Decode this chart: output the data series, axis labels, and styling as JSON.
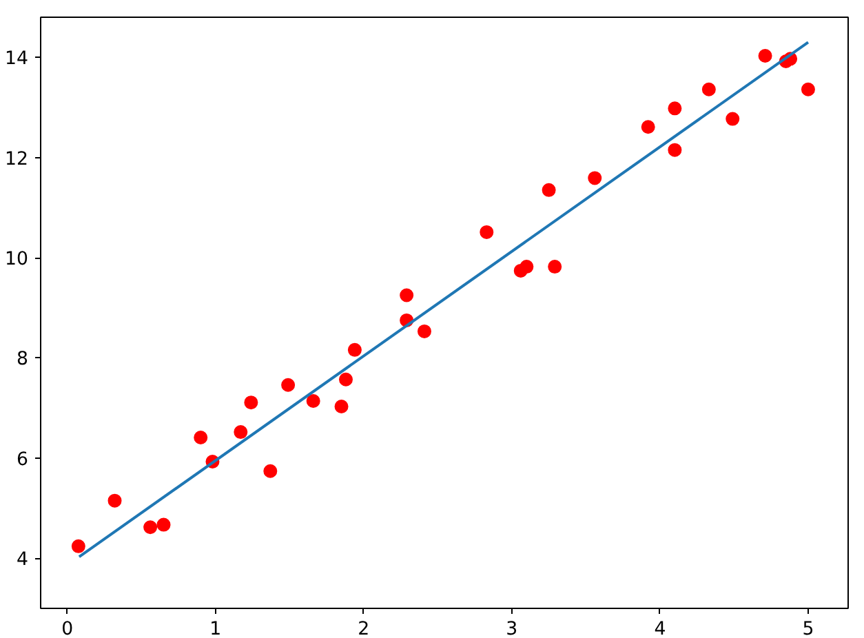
{
  "chart_data": {
    "type": "scatter",
    "xlim": [
      -0.18,
      5.27
    ],
    "ylim": [
      3.0,
      14.8
    ],
    "xticks": [
      0,
      1,
      2,
      3,
      4,
      5
    ],
    "yticks": [
      4,
      6,
      8,
      10,
      12,
      14
    ],
    "grid": false,
    "series": [
      {
        "marker": "circle",
        "color": "#ff0000",
        "x": [
          0.075,
          0.32,
          0.56,
          0.65,
          0.9,
          0.98,
          1.17,
          1.24,
          1.37,
          1.49,
          1.66,
          1.85,
          1.88,
          1.94,
          2.29,
          2.29,
          2.41,
          2.83,
          3.06,
          3.1,
          3.25,
          3.29,
          3.56,
          3.92,
          4.1,
          4.1,
          4.33,
          4.49,
          4.71,
          4.85,
          4.88,
          5.0
        ],
        "values": [
          4.24,
          5.15,
          4.62,
          4.67,
          6.41,
          5.93,
          6.52,
          7.11,
          5.74,
          7.46,
          7.14,
          7.03,
          7.57,
          8.16,
          9.25,
          8.75,
          8.53,
          10.51,
          9.74,
          9.82,
          11.35,
          9.82,
          11.59,
          12.61,
          12.98,
          12.15,
          13.36,
          12.77,
          14.03,
          13.92,
          13.97,
          13.36
        ]
      },
      {
        "type": "line",
        "marker": "none",
        "color": "#1f77b4",
        "line_style": "solid",
        "x": [
          0.08,
          5.0
        ],
        "values": [
          4.03,
          14.3
        ]
      }
    ]
  }
}
